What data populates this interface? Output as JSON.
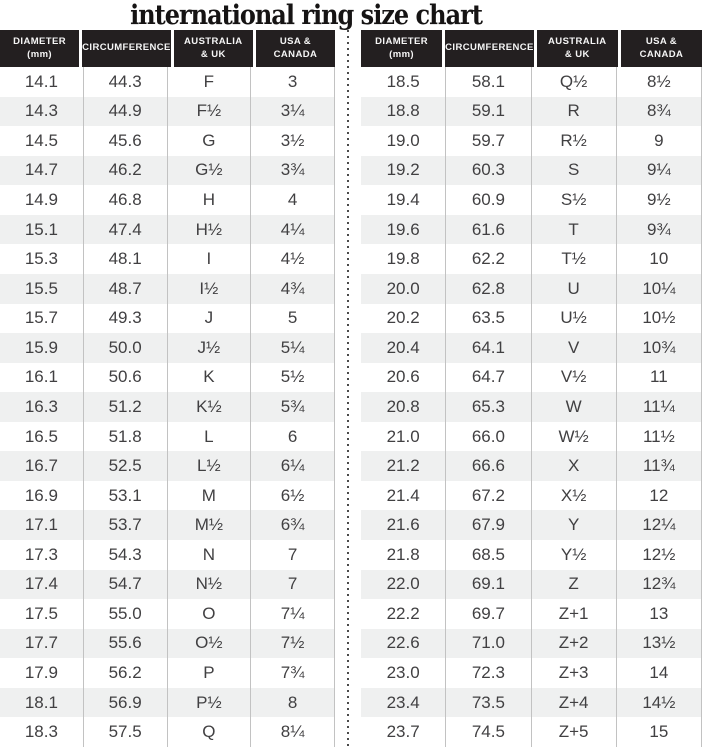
{
  "title": "international ring size chart",
  "columns": [
    {
      "label": "DIAMETER (mm)",
      "lines": [
        "DIAMETER",
        "(mm)"
      ]
    },
    {
      "label": "CIRCUMFERENCE",
      "lines": [
        "CIRCUMFERENCE"
      ]
    },
    {
      "label": "AUSTRALIA & UK",
      "lines": [
        "AUSTRALIA",
        "& UK"
      ]
    },
    {
      "label": "USA & CANADA",
      "lines": [
        "USA &",
        "CANADA"
      ]
    }
  ],
  "tables": [
    {
      "name": "left",
      "rows": [
        [
          "14.1",
          "44.3",
          "F",
          "3"
        ],
        [
          "14.3",
          "44.9",
          "F½",
          "3¼"
        ],
        [
          "14.5",
          "45.6",
          "G",
          "3½"
        ],
        [
          "14.7",
          "46.2",
          "G½",
          "3¾"
        ],
        [
          "14.9",
          "46.8",
          "H",
          "4"
        ],
        [
          "15.1",
          "47.4",
          "H½",
          "4¼"
        ],
        [
          "15.3",
          "48.1",
          "I",
          "4½"
        ],
        [
          "15.5",
          "48.7",
          "I½",
          "4¾"
        ],
        [
          "15.7",
          "49.3",
          "J",
          "5"
        ],
        [
          "15.9",
          "50.0",
          "J½",
          "5¼"
        ],
        [
          "16.1",
          "50.6",
          "K",
          "5½"
        ],
        [
          "16.3",
          "51.2",
          "K½",
          "5¾"
        ],
        [
          "16.5",
          "51.8",
          "L",
          "6"
        ],
        [
          "16.7",
          "52.5",
          "L½",
          "6¼"
        ],
        [
          "16.9",
          "53.1",
          "M",
          "6½"
        ],
        [
          "17.1",
          "53.7",
          "M½",
          "6¾"
        ],
        [
          "17.3",
          "54.3",
          "N",
          "7"
        ],
        [
          "17.4",
          "54.7",
          "N½",
          "7"
        ],
        [
          "17.5",
          "55.0",
          "O",
          "7¼"
        ],
        [
          "17.7",
          "55.6",
          "O½",
          "7½"
        ],
        [
          "17.9",
          "56.2",
          "P",
          "7¾"
        ],
        [
          "18.1",
          "56.9",
          "P½",
          "8"
        ],
        [
          "18.3",
          "57.5",
          "Q",
          "8¼"
        ]
      ]
    },
    {
      "name": "right",
      "rows": [
        [
          "18.5",
          "58.1",
          "Q½",
          "8½"
        ],
        [
          "18.8",
          "59.1",
          "R",
          "8¾"
        ],
        [
          "19.0",
          "59.7",
          "R½",
          "9"
        ],
        [
          "19.2",
          "60.3",
          "S",
          "9¼"
        ],
        [
          "19.4",
          "60.9",
          "S½",
          "9½"
        ],
        [
          "19.6",
          "61.6",
          "T",
          "9¾"
        ],
        [
          "19.8",
          "62.2",
          "T½",
          "10"
        ],
        [
          "20.0",
          "62.8",
          "U",
          "10¼"
        ],
        [
          "20.2",
          "63.5",
          "U½",
          "10½"
        ],
        [
          "20.4",
          "64.1",
          "V",
          "10¾"
        ],
        [
          "20.6",
          "64.7",
          "V½",
          "11"
        ],
        [
          "20.8",
          "65.3",
          "W",
          "11¼"
        ],
        [
          "21.0",
          "66.0",
          "W½",
          "11½"
        ],
        [
          "21.2",
          "66.6",
          "X",
          "11¾"
        ],
        [
          "21.4",
          "67.2",
          "X½",
          "12"
        ],
        [
          "21.6",
          "67.9",
          "Y",
          "12¼"
        ],
        [
          "21.8",
          "68.5",
          "Y½",
          "12½"
        ],
        [
          "22.0",
          "69.1",
          "Z",
          "12¾"
        ],
        [
          "22.2",
          "69.7",
          "Z+1",
          "13"
        ],
        [
          "22.6",
          "71.0",
          "Z+2",
          "13½"
        ],
        [
          "23.0",
          "72.3",
          "Z+3",
          "14"
        ],
        [
          "23.4",
          "73.5",
          "Z+4",
          "14½"
        ],
        [
          "23.7",
          "74.5",
          "Z+5",
          "15"
        ]
      ]
    }
  ],
  "colors": {
    "header_bg": "#231f20",
    "header_text": "#f6f6f6",
    "row_stripe": "#eff0f0",
    "cell_text": "#414042",
    "cell_border": "#c2c2c2",
    "divider_dot": "#4a4a4a",
    "title_text": "#161414"
  }
}
